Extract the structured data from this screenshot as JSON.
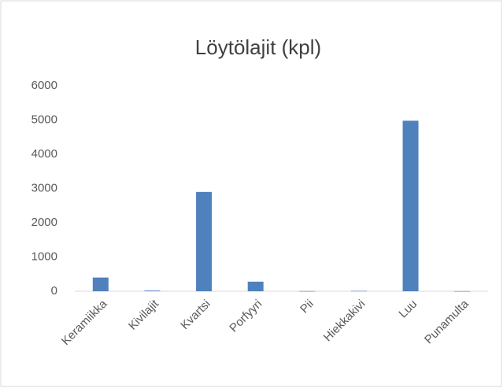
{
  "chart_data": {
    "type": "bar",
    "title": "Löytölajit (kpl)",
    "categories": [
      "Keramiikka",
      "Kivilajit",
      "Kvartsi",
      "Porfyyri",
      "Pii",
      "Hiekkakivi",
      "Luu",
      "Punamulta"
    ],
    "values": [
      400,
      20,
      2900,
      280,
      5,
      10,
      4980,
      3
    ],
    "color": "#4f81bd",
    "ylim": [
      0,
      6000
    ],
    "yticks": [
      0,
      1000,
      2000,
      3000,
      4000,
      5000,
      6000
    ],
    "grid": false
  }
}
